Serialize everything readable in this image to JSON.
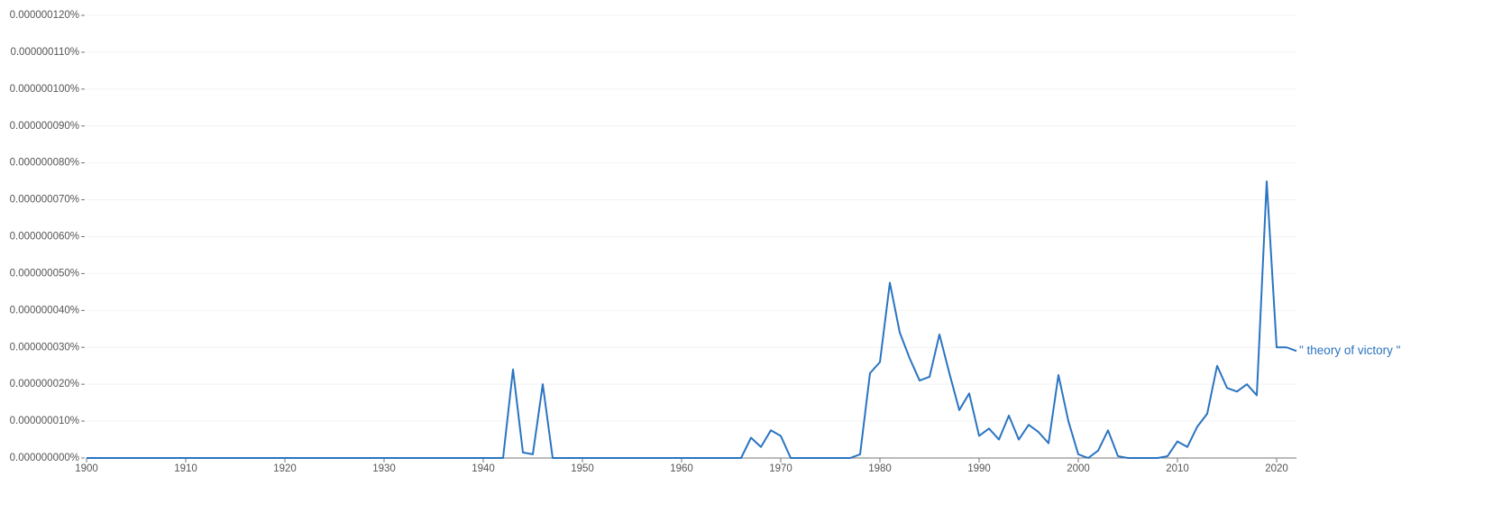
{
  "chart_data": {
    "type": "line",
    "x": [
      1900,
      1901,
      1902,
      1903,
      1904,
      1905,
      1906,
      1907,
      1908,
      1909,
      1910,
      1911,
      1912,
      1913,
      1914,
      1915,
      1916,
      1917,
      1918,
      1919,
      1920,
      1921,
      1922,
      1923,
      1924,
      1925,
      1926,
      1927,
      1928,
      1929,
      1930,
      1931,
      1932,
      1933,
      1934,
      1935,
      1936,
      1937,
      1938,
      1939,
      1940,
      1941,
      1942,
      1943,
      1944,
      1945,
      1946,
      1947,
      1948,
      1949,
      1950,
      1951,
      1952,
      1953,
      1954,
      1955,
      1956,
      1957,
      1958,
      1959,
      1960,
      1961,
      1962,
      1963,
      1964,
      1965,
      1966,
      1967,
      1968,
      1969,
      1970,
      1971,
      1972,
      1973,
      1974,
      1975,
      1976,
      1977,
      1978,
      1979,
      1980,
      1981,
      1982,
      1983,
      1984,
      1985,
      1986,
      1987,
      1988,
      1989,
      1990,
      1991,
      1992,
      1993,
      1994,
      1995,
      1996,
      1997,
      1998,
      1999,
      2000,
      2001,
      2002,
      2003,
      2004,
      2005,
      2006,
      2007,
      2008,
      2009,
      2010,
      2011,
      2012,
      2013,
      2014,
      2015,
      2016,
      2017,
      2018,
      2019,
      2020,
      2021,
      2022
    ],
    "series": [
      {
        "name": "\" theory of victory \"",
        "color": "#2a74c2",
        "values": [
          0,
          0,
          0,
          0,
          0,
          0,
          0,
          0,
          0,
          0,
          0,
          0,
          0,
          0,
          0,
          0,
          0,
          0,
          0,
          0,
          0,
          0,
          0,
          0,
          0,
          0,
          0,
          0,
          0,
          0,
          0,
          0,
          0,
          0,
          0,
          0,
          0,
          0,
          0,
          0,
          0,
          0,
          0,
          2.4e-08,
          1.5e-09,
          1e-09,
          2e-08,
          0,
          0,
          0,
          0,
          0,
          0,
          0,
          0,
          0,
          0,
          0,
          0,
          0,
          0,
          0,
          0,
          0,
          0,
          0,
          0,
          5.5e-09,
          3e-09,
          7.5e-09,
          6e-09,
          0,
          0,
          0,
          0,
          0,
          0,
          0,
          1e-09,
          2.3e-08,
          2.6e-08,
          4.75e-08,
          3.4e-08,
          2.7e-08,
          2.1e-08,
          2.2e-08,
          3.35e-08,
          2.3e-08,
          1.3e-08,
          1.75e-08,
          6e-09,
          8e-09,
          5e-09,
          1.15e-08,
          5e-09,
          9e-09,
          7e-09,
          4e-09,
          2.25e-08,
          1e-08,
          1e-09,
          0,
          2e-09,
          7.5e-09,
          5e-10,
          0,
          0,
          0,
          0,
          5e-10,
          4.5e-09,
          3e-09,
          8.5e-09,
          1.2e-08,
          2.5e-08,
          1.9e-08,
          1.8e-08,
          2e-08,
          1.7e-08,
          7.5e-08,
          3e-08,
          3e-08,
          2.9e-08
        ]
      }
    ],
    "xlim": [
      1900,
      2022
    ],
    "xticks": [
      1900,
      1910,
      1920,
      1930,
      1940,
      1950,
      1960,
      1970,
      1980,
      1990,
      2000,
      2010,
      2020
    ],
    "ylim": [
      0,
      1.2e-07
    ],
    "yticks": [
      {
        "value": 0,
        "label": "0.000000000%"
      },
      {
        "value": 1e-08,
        "label": "0.000000010%"
      },
      {
        "value": 2e-08,
        "label": "0.000000020%"
      },
      {
        "value": 3e-08,
        "label": "0.000000030%"
      },
      {
        "value": 4e-08,
        "label": "0.000000040%"
      },
      {
        "value": 5e-08,
        "label": "0.000000050%"
      },
      {
        "value": 6e-08,
        "label": "0.000000060%"
      },
      {
        "value": 7e-08,
        "label": "0.000000070%"
      },
      {
        "value": 8e-08,
        "label": "0.000000080%"
      },
      {
        "value": 9e-08,
        "label": "0.000000090%"
      },
      {
        "value": 1e-07,
        "label": "0.000000100%"
      },
      {
        "value": 1.1e-07,
        "label": "0.000000110%"
      },
      {
        "value": 1.2e-07,
        "label": "0.000000120%"
      }
    ],
    "grid": true
  }
}
